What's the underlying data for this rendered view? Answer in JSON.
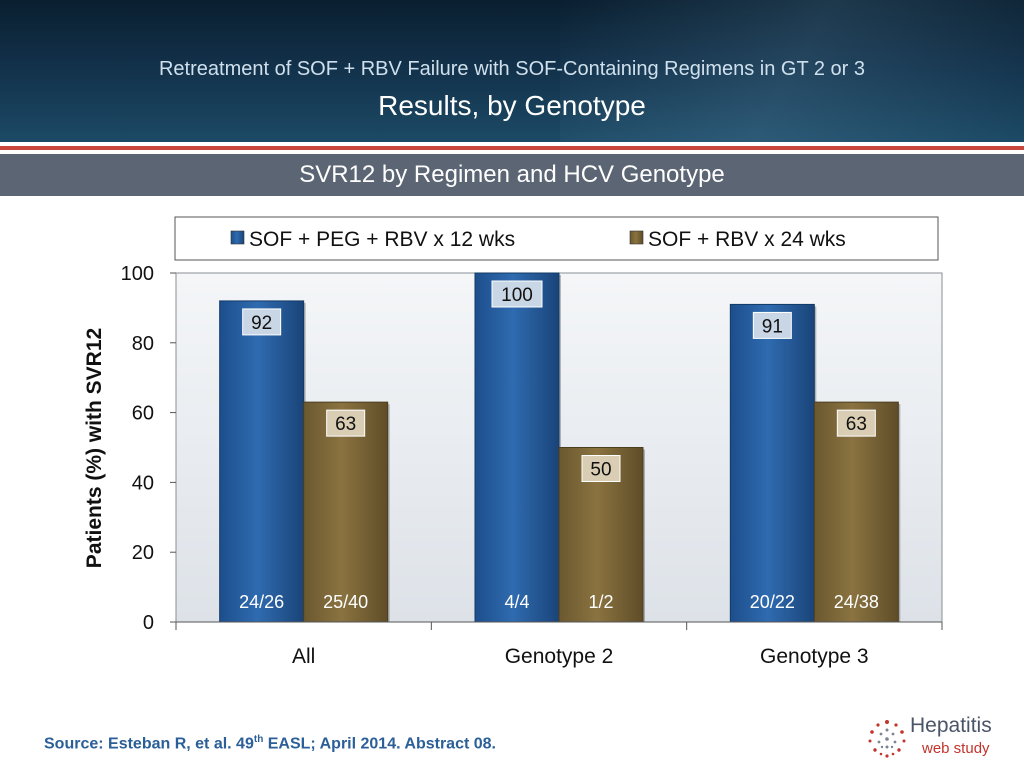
{
  "header": {
    "title_line1": "Retreatment of SOF + RBV Failure with SOF-Containing Regimens in GT 2 or 3",
    "title_line2": "Results, by Genotype"
  },
  "subheader": "SVR12 by Regimen and HCV Genotype",
  "colors": {
    "series1": "#2f6bb0",
    "series2": "#8a7340",
    "header_dark": "#0f2a3f",
    "accent_red": "#c9463d",
    "subheader_bg": "#5b6573",
    "source_text": "#2b5f98"
  },
  "chart_data": {
    "type": "bar",
    "title": "",
    "ylabel": "Patients (%) with SVR12",
    "xlabel": "",
    "ylim": [
      0,
      100
    ],
    "yticks": [
      0,
      20,
      40,
      60,
      80,
      100
    ],
    "categories": [
      "All",
      "Genotype 2",
      "Genotype 3"
    ],
    "legend_position": "top",
    "grid": false,
    "series": [
      {
        "name": "SOF + PEG + RBV x 12 wks",
        "values": [
          92,
          100,
          91
        ],
        "fractions": [
          "24/26",
          "4/4",
          "20/22"
        ]
      },
      {
        "name": "SOF + RBV x 24 wks",
        "values": [
          63,
          50,
          63
        ],
        "fractions": [
          "25/40",
          "1/2",
          "24/38"
        ]
      }
    ]
  },
  "footer": {
    "source_prefix": "Source: Esteban R, et al. 49",
    "source_sup": "th",
    "source_suffix": " EASL; April 2014. Abstract 08."
  },
  "logo": {
    "word1": "Hepatitis",
    "word2": "web study"
  }
}
